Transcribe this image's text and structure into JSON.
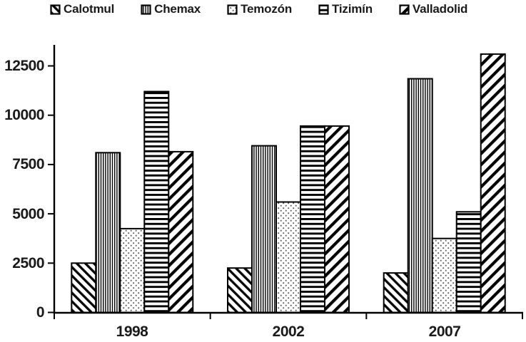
{
  "chart_data": {
    "type": "bar",
    "categories": [
      "1998",
      "2002",
      "2007"
    ],
    "series": [
      {
        "name": "Calotmul",
        "pattern": "diagonal-down",
        "values": [
          2500,
          2250,
          2000
        ]
      },
      {
        "name": "Chemax",
        "pattern": "vertical-lines",
        "values": [
          8100,
          8450,
          11850
        ]
      },
      {
        "name": "Temozón",
        "pattern": "dots",
        "values": [
          4250,
          5600,
          3750
        ]
      },
      {
        "name": "Tizimín",
        "pattern": "horizontal-lines",
        "values": [
          11200,
          9450,
          5100
        ]
      },
      {
        "name": "Valladolid",
        "pattern": "diagonal-up",
        "values": [
          8150,
          9450,
          13100
        ]
      }
    ],
    "yticks": [
      0,
      2500,
      5000,
      7500,
      10000,
      12500
    ],
    "ylim": [
      0,
      13550
    ],
    "grid": false,
    "legend_position": "top",
    "colors": {
      "bar_fill": "#ffffff",
      "bar_stroke": "#000000",
      "axis": "#000000",
      "text": "#1a1a1a",
      "dot_pattern": "#555555"
    }
  }
}
